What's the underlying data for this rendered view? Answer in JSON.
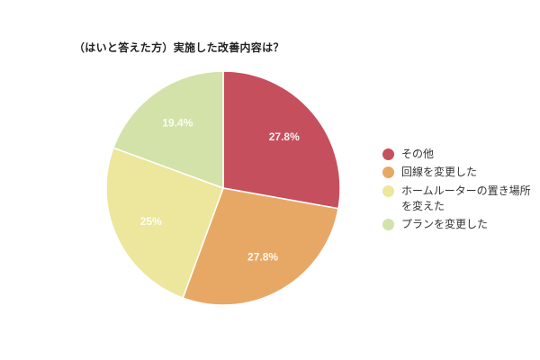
{
  "chart_data": {
    "type": "pie",
    "title": "（はいと答えた方）実施した改善内容は？",
    "categories": [
      "その他",
      "回線を変更した",
      "ホームルーターの置き場所を変えた",
      "プランを変更した"
    ],
    "values": [
      27.8,
      27.8,
      25,
      19.4
    ],
    "labels": [
      "27.8%",
      "27.8%",
      "25%",
      "19.4%"
    ],
    "colors": [
      "#c64f5e",
      "#e8a865",
      "#ece79c",
      "#d2e2a9"
    ],
    "legend_position": "right",
    "start_angle": "12 o'clock, clockwise"
  },
  "legend": [
    {
      "line1": "その他",
      "line2": ""
    },
    {
      "line1": "回線を変更した",
      "line2": ""
    },
    {
      "line1": "ホームルーターの置き場所",
      "line2": "を変えた"
    },
    {
      "line1": "プランを変更した",
      "line2": ""
    }
  ]
}
